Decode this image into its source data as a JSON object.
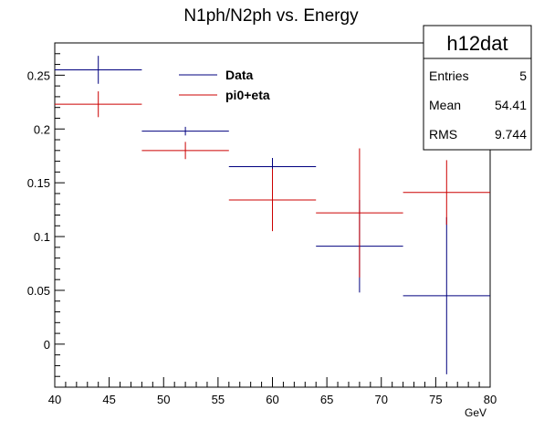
{
  "chart_data": {
    "type": "scatter",
    "title": "N1ph/N2ph vs. Energy",
    "xlabel": "GeV",
    "ylabel": "",
    "xlim": [
      40,
      80
    ],
    "ylim": [
      -0.04,
      0.28
    ],
    "x_ticks": [
      40,
      45,
      50,
      55,
      60,
      65,
      70,
      75,
      80
    ],
    "y_ticks": [
      0,
      0.05,
      0.1,
      0.15,
      0.2,
      0.25
    ],
    "x_tick_labels": [
      "40",
      "45",
      "50",
      "55",
      "60",
      "65",
      "70",
      "75",
      "80"
    ],
    "y_tick_labels": [
      "0",
      "0.05",
      "0.1",
      "0.15",
      "0.2",
      "0.25"
    ],
    "grid": false,
    "legend_position": "top-center",
    "series": [
      {
        "name": "Data",
        "color": "#00007f",
        "points": [
          {
            "x": 44,
            "xerr": 4,
            "y": 0.255,
            "yerr": 0.013
          },
          {
            "x": 52,
            "xerr": 4,
            "y": 0.198,
            "yerr": 0.004
          },
          {
            "x": 60,
            "xerr": 4,
            "y": 0.165,
            "yerr": 0.008
          },
          {
            "x": 68,
            "xerr": 4,
            "y": 0.091,
            "yerr": 0.043
          },
          {
            "x": 76,
            "xerr": 4,
            "y": 0.045,
            "yerr": 0.073
          }
        ]
      },
      {
        "name": "pi0+eta",
        "color": "#cc0000",
        "points": [
          {
            "x": 44,
            "xerr": 4,
            "y": 0.223,
            "yerr": 0.012
          },
          {
            "x": 52,
            "xerr": 4,
            "y": 0.18,
            "yerr": 0.008
          },
          {
            "x": 60,
            "xerr": 4,
            "y": 0.134,
            "yerr": 0.029
          },
          {
            "x": 68,
            "xerr": 4,
            "y": 0.122,
            "yerr": 0.06
          },
          {
            "x": 76,
            "xerr": 4,
            "y": 0.141,
            "yerr": 0.03
          }
        ]
      }
    ]
  },
  "stats_box": {
    "title": "h12dat",
    "rows": [
      {
        "label": "Entries",
        "value": "5"
      },
      {
        "label": "Mean",
        "value": "54.41"
      },
      {
        "label": "RMS",
        "value": "9.744"
      }
    ]
  }
}
